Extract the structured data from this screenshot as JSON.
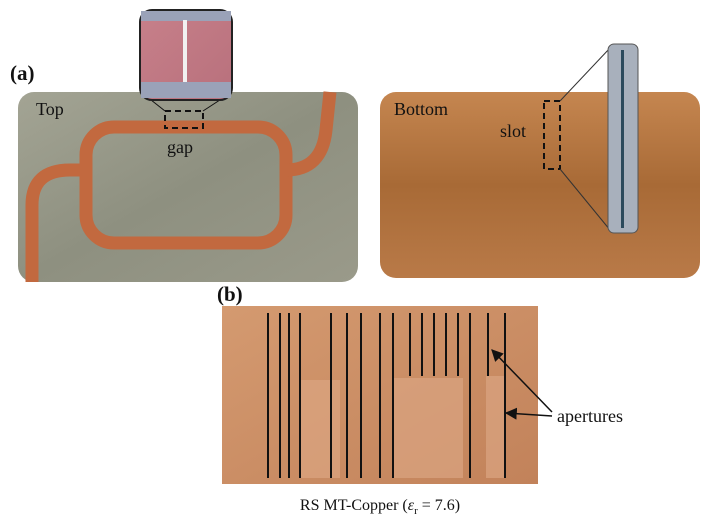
{
  "panel_a": {
    "label": "(a)",
    "top": {
      "label": "Top",
      "annotation": "gap"
    },
    "bottom": {
      "label": "Bottom",
      "annotation": "slot"
    }
  },
  "panel_b": {
    "label": "(b)",
    "annotation": "apertures",
    "caption": {
      "prefix": "RS MT-Copper (",
      "symbol": "ε",
      "subscript": "r",
      "suffix": " = 7.6)"
    }
  }
}
